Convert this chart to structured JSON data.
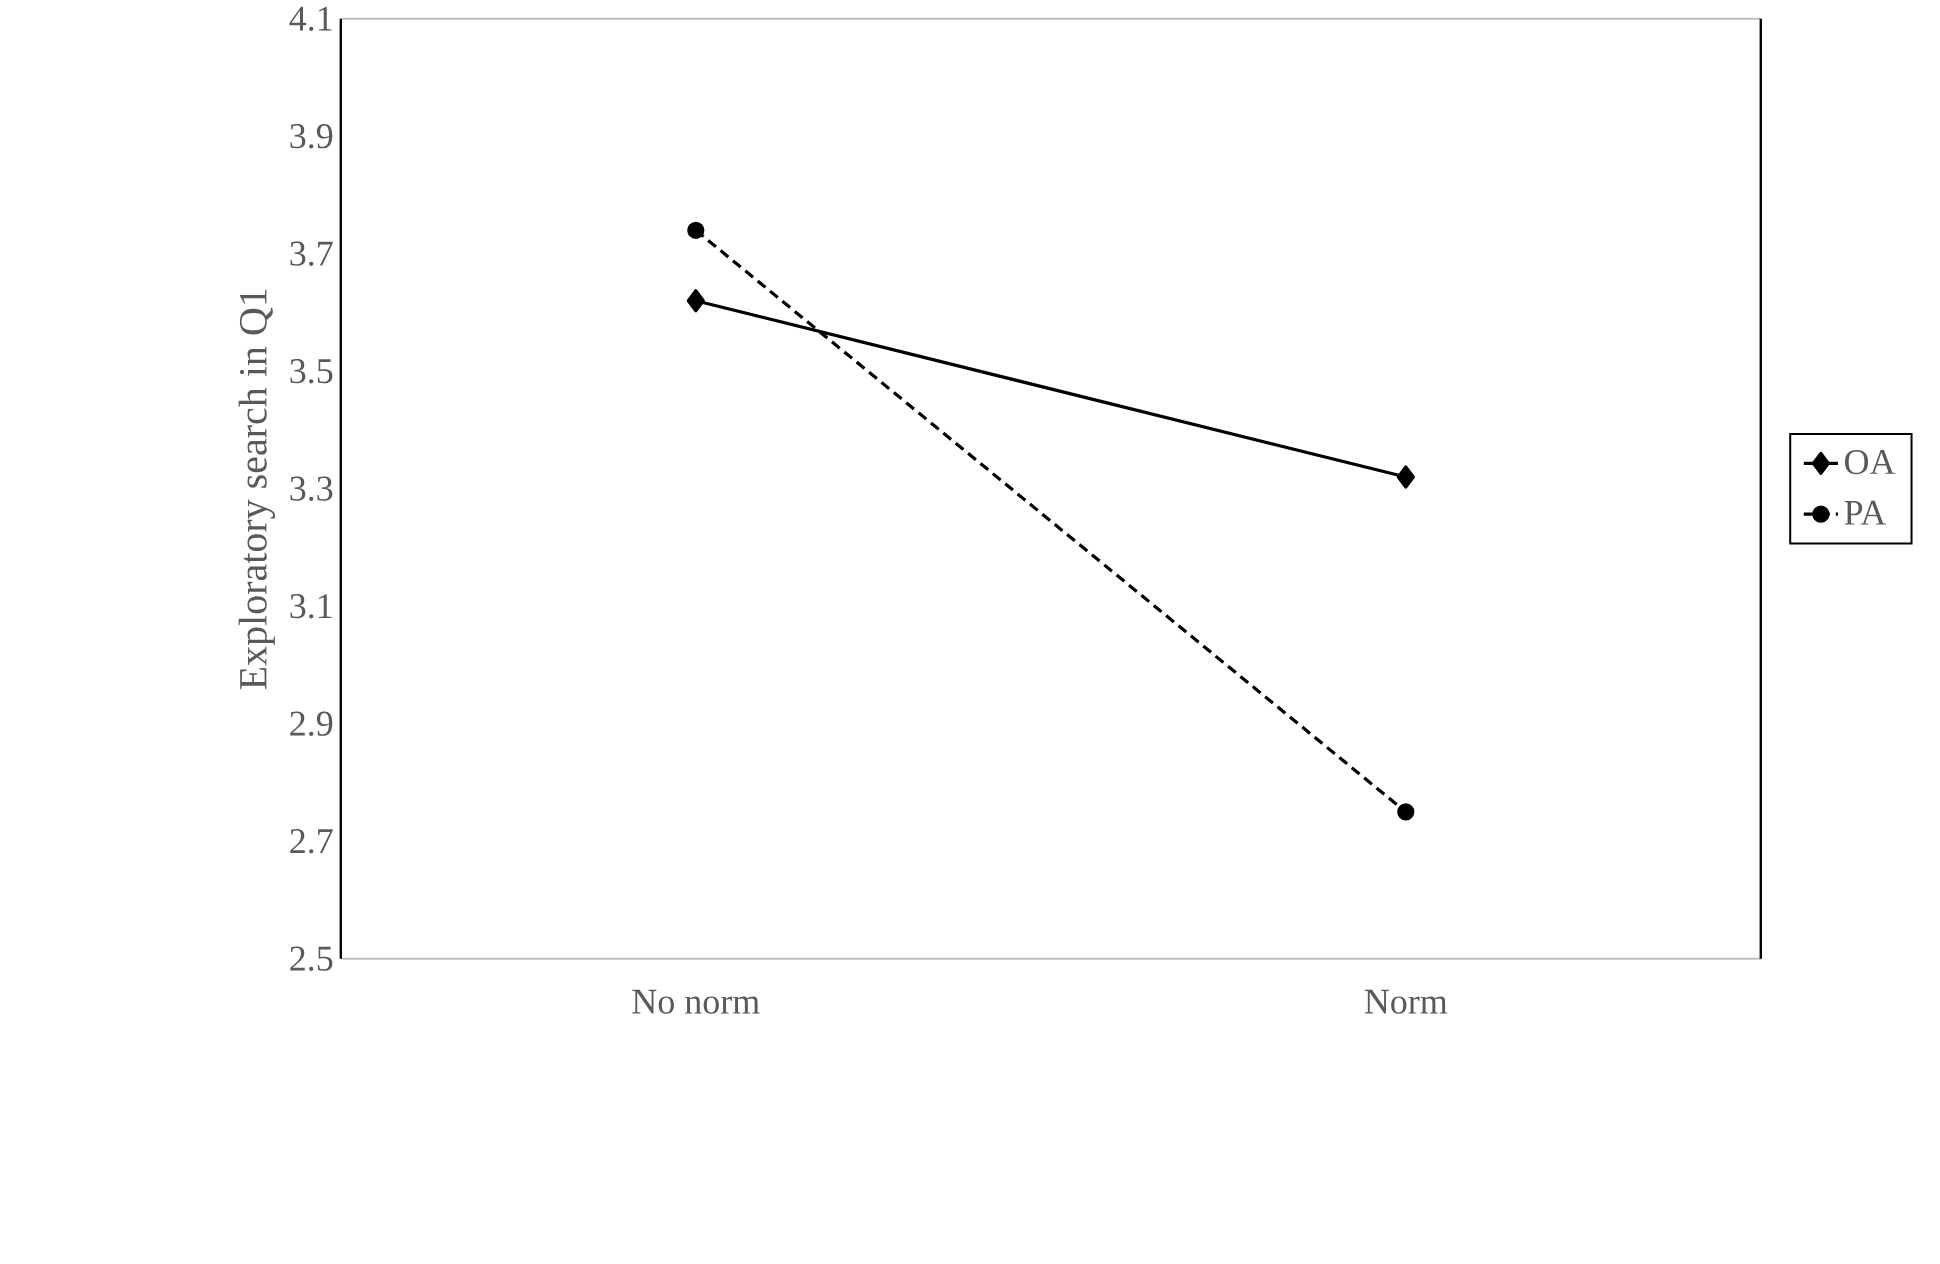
{
  "chart_data": {
    "type": "line",
    "ylabel": "Exploratory search in Q1",
    "categories": [
      "No norm",
      "Norm"
    ],
    "series": [
      {
        "name": "OA",
        "color": "#000000",
        "values": [
          3.62,
          3.32
        ],
        "marker": "diamond",
        "line_style": "solid"
      },
      {
        "name": "PA",
        "color": "#000000",
        "values": [
          3.74,
          2.75
        ],
        "marker": "circle",
        "line_style": "dashed"
      }
    ],
    "ylim": [
      2.5,
      4.1
    ],
    "yticks": [
      2.5,
      2.7,
      2.9,
      3.1,
      3.3,
      3.5,
      3.7,
      3.9,
      4.1
    ],
    "grid": false,
    "legend": "right"
  }
}
